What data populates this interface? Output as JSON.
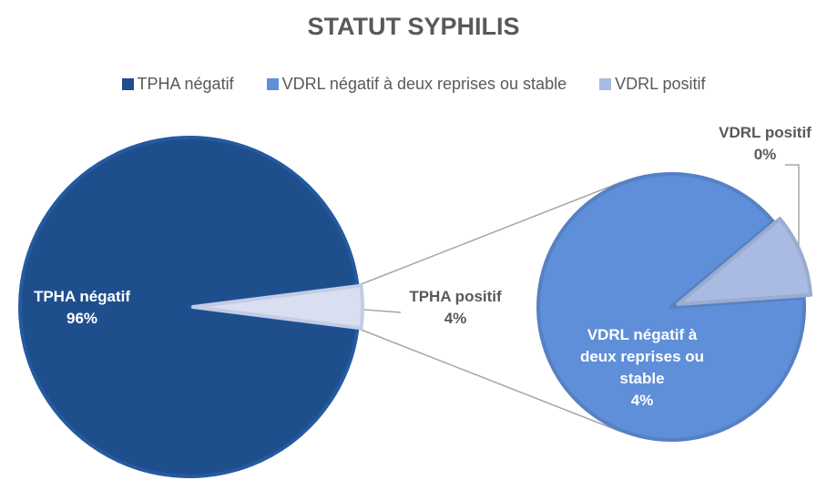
{
  "chart_data": {
    "type": "pie-of-pie",
    "title": "STATUT SYPHILIS",
    "categories": [
      "TPHA négatif",
      "VDRL négatif à deux reprises  ou stable",
      "VDRL positif"
    ],
    "values": [
      96,
      3.6,
      0.4
    ],
    "value_labels": [
      "96%",
      "4%",
      "0%"
    ],
    "colors": [
      "#1f4e8c",
      "#5f8fd8",
      "#a9bbe3"
    ],
    "other": {
      "name": "TPHA positif",
      "value": 4,
      "value_label": "4%",
      "color": "#d9dff0"
    },
    "legend": "top"
  }
}
